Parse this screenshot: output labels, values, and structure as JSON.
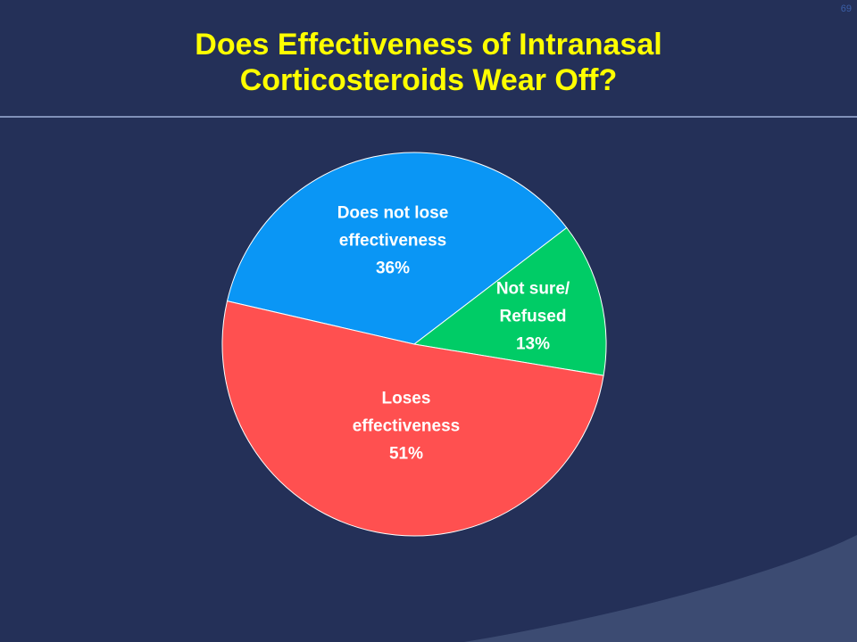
{
  "slide_number": "69",
  "chart_data": {
    "type": "pie",
    "title": "Does Effectiveness of Intranasal Corticosteroids Wear Off?",
    "categories": [
      "Does not lose effectiveness",
      "Not sure/ Refused",
      "Loses effectiveness"
    ],
    "values": [
      36,
      13,
      51
    ],
    "value_labels": [
      "36%",
      "13%",
      "51%"
    ],
    "colors": [
      "#0a96f5",
      "#00cc66",
      "#ff5050"
    ]
  }
}
